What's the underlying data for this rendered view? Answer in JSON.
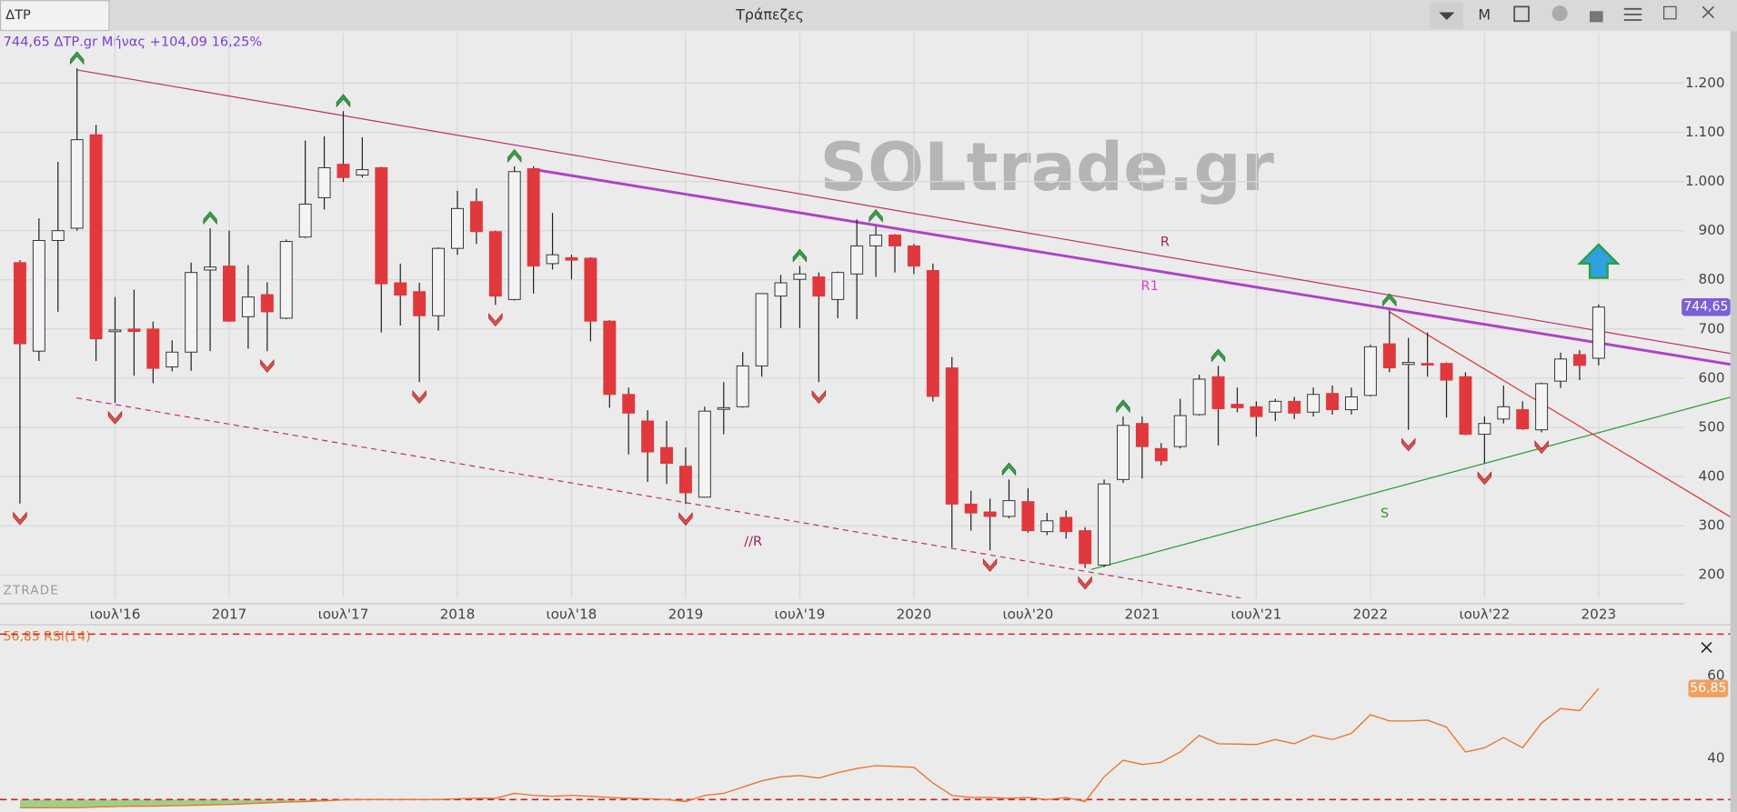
{
  "toolbar": {
    "symbol": "ΔΤΡ",
    "title": "Τράπεζες",
    "period": "M"
  },
  "chart_data": [
    {
      "type": "candlestick",
      "info": "744,65 ΔΤΡ.gr Μήνας +104,09 16,25%",
      "watermark": "SOLtrade.gr",
      "brand": "ZTRADE",
      "categories": [
        null,
        null,
        null,
        null,
        null,
        "ιουλ'16",
        null,
        null,
        null,
        null,
        null,
        "2017",
        null,
        null,
        null,
        null,
        null,
        "ιουλ'17",
        null,
        null,
        null,
        null,
        null,
        "2018",
        null,
        null,
        null,
        null,
        null,
        "ιουλ'18",
        null,
        null,
        null,
        null,
        null,
        "2019",
        null,
        null,
        null,
        null,
        null,
        "ιουλ'19",
        null,
        null,
        null,
        null,
        null,
        "2020",
        null,
        null,
        null,
        null,
        null,
        "ιουλ'20",
        null,
        null,
        null,
        null,
        null,
        "2021",
        null,
        null,
        null,
        null,
        null,
        "ιουλ'21",
        null,
        null,
        null,
        null,
        null,
        "2022",
        null,
        null,
        null,
        null,
        null,
        "ιουλ'22",
        null,
        null,
        null,
        null,
        null,
        "2023"
      ],
      "open": [
        835,
        655,
        880,
        905,
        1095,
        695,
        700,
        700,
        623,
        653,
        820,
        828,
        725,
        770,
        722,
        887,
        967,
        1035,
        1013,
        1028,
        794,
        776,
        727,
        864,
        959,
        898,
        760,
        1026,
        833,
        845,
        844,
        716,
        567,
        513,
        459,
        421,
        358,
        538,
        542,
        625,
        767,
        801,
        806,
        760,
        812,
        869,
        891,
        869,
        819,
        621,
        344,
        328,
        319,
        349,
        288,
        317,
        290,
        220,
        394,
        508,
        457,
        461,
        526,
        603,
        547,
        542,
        531,
        553,
        531,
        569,
        536,
        565,
        670,
        628,
        630,
        630,
        603,
        486,
        517,
        536,
        495,
        594,
        648,
        640.56
      ],
      "high": [
        840,
        925,
        1040,
        1230,
        1115,
        765,
        780,
        715,
        677,
        835,
        905,
        900,
        830,
        795,
        882,
        1083,
        1092,
        1143,
        1090,
        1030,
        833,
        794,
        866,
        981,
        986,
        900,
        1031,
        1031,
        936,
        851,
        846,
        718,
        581,
        535,
        513,
        459,
        542,
        592,
        653,
        772,
        810,
        828,
        815,
        817,
        923,
        909,
        893,
        873,
        833,
        643,
        371,
        355,
        394,
        376,
        326,
        331,
        297,
        394,
        522,
        522,
        468,
        558,
        607,
        625,
        581,
        553,
        558,
        562,
        581,
        585,
        581,
        668,
        738,
        682,
        693,
        632,
        612,
        522,
        585,
        553,
        591,
        652,
        657,
        750
      ],
      "low": [
        345,
        635,
        735,
        900,
        635,
        550,
        605,
        590,
        614,
        615,
        655,
        715,
        660,
        655,
        720,
        885,
        943,
        999,
        1008,
        693,
        707,
        592,
        697,
        851,
        873,
        749,
        758,
        772,
        821,
        801,
        675,
        540,
        445,
        389,
        385,
        344,
        358,
        486,
        540,
        603,
        702,
        702,
        592,
        722,
        720,
        806,
        815,
        812,
        553,
        256,
        290,
        250,
        315,
        286,
        281,
        274,
        214,
        216,
        387,
        396,
        423,
        457,
        524,
        463,
        531,
        481,
        513,
        517,
        522,
        526,
        526,
        563,
        612,
        495,
        603,
        520,
        484,
        427,
        508,
        495,
        490,
        580,
        596,
        626
      ],
      "close": [
        670,
        880,
        900,
        1085,
        680,
        698,
        695,
        620,
        653,
        815,
        826,
        716,
        765,
        735,
        878,
        954,
        1028,
        1008,
        1024,
        792,
        769,
        727,
        864,
        945,
        898,
        767,
        1020,
        828,
        851,
        840,
        716,
        567,
        529,
        450,
        427,
        367,
        533,
        540,
        625,
        772,
        794,
        812,
        767,
        815,
        869,
        891,
        869,
        828,
        563,
        344,
        326,
        319,
        351,
        290,
        310,
        288,
        223,
        385,
        504,
        461,
        432,
        524,
        598,
        538,
        540,
        522,
        553,
        529,
        567,
        536,
        562,
        664,
        621,
        632,
        628,
        596,
        486,
        508,
        542,
        497,
        589,
        639,
        626,
        744.65
      ],
      "last_value_label": "744,65",
      "up_color": "#f3f3f3",
      "down_color": "#e0383c",
      "wick_color": "#222222",
      "last_color": "#7b5fd6",
      "ylim": [
        150,
        1300
      ],
      "yticks": [
        200,
        300,
        400,
        500,
        600,
        700,
        800,
        900,
        {
          "value": 1000,
          "label": "1.000"
        },
        {
          "value": 1100,
          "label": "1.100"
        },
        {
          "value": 1200,
          "label": "1.200"
        }
      ],
      "grid": true,
      "trendlines": [
        {
          "label": "R",
          "color": "#c0306a",
          "label_color": "#a02060",
          "style": "solid",
          "weight": "thin",
          "points": [
            [
              2.97,
              1227
            ],
            [
              90.27,
              648
            ]
          ]
        },
        {
          "label": "R1",
          "color": "#b040c8",
          "label_color": "#d040d0",
          "style": "solid",
          "weight": "thick",
          "points": [
            [
              27.08,
              1024
            ],
            [
              90.27,
              626
            ]
          ]
        },
        {
          "label": "//R",
          "color": "#c0306a",
          "label_color": "#a02060",
          "style": "dashed",
          "weight": "thin",
          "points": [
            [
              2.97,
              560
            ],
            [
              64.18,
              153
            ]
          ]
        },
        {
          "label": "S",
          "color": "#2a9a2a",
          "label_color": "#2a9a2a",
          "style": "solid",
          "weight": "thin",
          "points": [
            [
              56.32,
              211
            ],
            [
              90.27,
              565
            ]
          ]
        },
        {
          "color": "#e03030",
          "style": "solid",
          "weight": "thin",
          "points": [
            [
              72.04,
              734
            ],
            [
              90.27,
              310
            ]
          ]
        }
      ]
    },
    {
      "type": "line",
      "title": "56,85 RSI(14)",
      "values": [
        28,
        28,
        28,
        28,
        28.2,
        28.3,
        28.4,
        28.4,
        28.5,
        28.6,
        28.7,
        28.8,
        29,
        29.2,
        29.4,
        29.5,
        29.7,
        29.9,
        30,
        30,
        30,
        30,
        30,
        30.2,
        30.3,
        30.3,
        31.5,
        31,
        30.8,
        31,
        30.8,
        30.5,
        30.3,
        30.2,
        30,
        29.5,
        31,
        31.5,
        33,
        34.5,
        35.5,
        35.8,
        35.2,
        36.5,
        37.5,
        38.2,
        38,
        37.8,
        34,
        31,
        30.5,
        30.5,
        30.3,
        30.5,
        30,
        30.5,
        29.5,
        35.5,
        39.5,
        38.5,
        39,
        41.5,
        45.5,
        43.5,
        43.4,
        43.3,
        44.5,
        43.5,
        45.5,
        44.5,
        46,
        50.5,
        49,
        49,
        49.2,
        47.5,
        41.5,
        42.5,
        45,
        42.5,
        48.5,
        52,
        51.5,
        56.85
      ],
      "last_value_label": "56,85",
      "color": "#e8742a",
      "level_color": "#d02020",
      "fill_color": "#9fd08a",
      "ylim": [
        27,
        72
      ],
      "yticks": [
        40,
        60
      ],
      "levels": [
        30,
        70
      ]
    }
  ]
}
